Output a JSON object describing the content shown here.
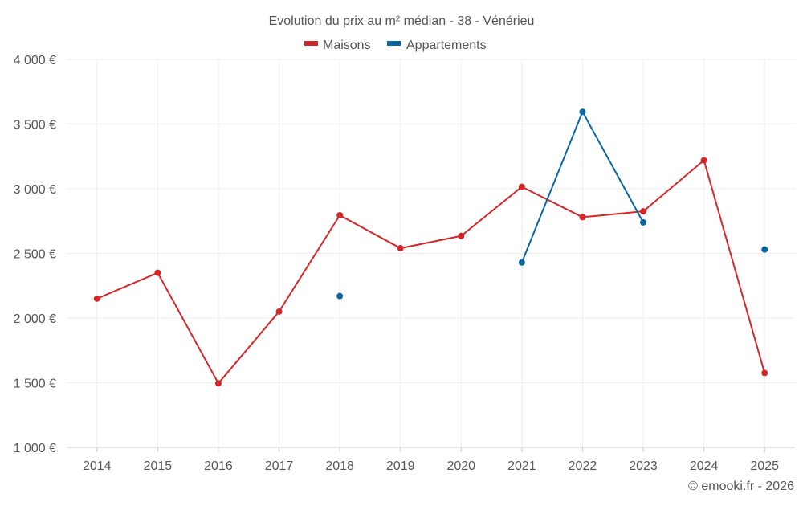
{
  "chart_data": {
    "type": "line",
    "title": "Evolution du prix au m² médian - 38 - Vénérieu",
    "categories": [
      "2014",
      "2015",
      "2016",
      "2017",
      "2018",
      "2019",
      "2020",
      "2021",
      "2022",
      "2023",
      "2024",
      "2025"
    ],
    "series": [
      {
        "name": "Maisons",
        "color": "#d62728",
        "values": [
          2150,
          2350,
          1495,
          2050,
          2795,
          2540,
          2635,
          3015,
          2780,
          2825,
          3220,
          1575
        ]
      },
      {
        "name": "Appartements",
        "color": "#0a67a3",
        "values": [
          null,
          null,
          null,
          null,
          2170,
          null,
          null,
          2430,
          3595,
          2740,
          null,
          2530
        ]
      }
    ],
    "y_ticks": [
      "1 000 €",
      "1 500 €",
      "2 000 €",
      "2 500 €",
      "3 000 €",
      "3 500 €",
      "4 000 €"
    ],
    "ylim": [
      1000,
      4000
    ],
    "ytick_step": 500,
    "xlabel": "",
    "ylabel": "",
    "grid": true,
    "legend_position": "top-center"
  },
  "credit": "© emooki.fr - 2026"
}
